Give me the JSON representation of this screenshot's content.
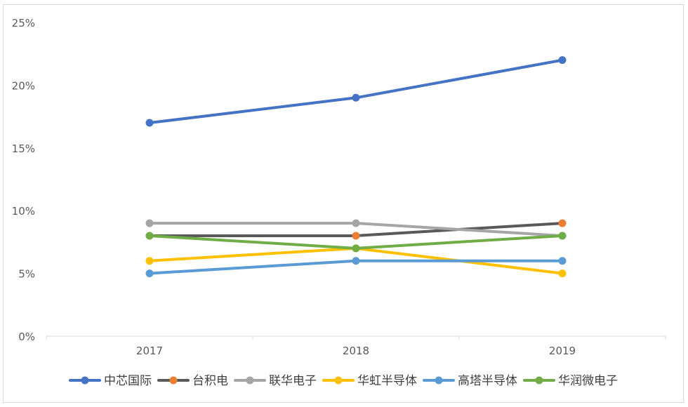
{
  "chart_data": {
    "type": "line",
    "categories": [
      "2017",
      "2018",
      "2019"
    ],
    "y_ticks": [
      "0%",
      "5%",
      "10%",
      "15%",
      "20%",
      "25%"
    ],
    "ylim": [
      0,
      25
    ],
    "grid": false,
    "legend_position": "bottom",
    "series": [
      {
        "name": "中芯国际",
        "values": [
          17,
          19,
          22
        ],
        "color": "#4472c4",
        "marker_color": "#4472c4"
      },
      {
        "name": "台积电",
        "values": [
          8,
          8,
          9
        ],
        "color": "#595959",
        "marker_color": "#ed7d31"
      },
      {
        "name": "联华电子",
        "values": [
          9,
          9,
          8
        ],
        "color": "#a5a5a5",
        "marker_color": "#a5a5a5"
      },
      {
        "name": "华虹半导体",
        "values": [
          6,
          7,
          5
        ],
        "color": "#ffc000",
        "marker_color": "#ffc000"
      },
      {
        "name": "高塔半导体",
        "values": [
          5,
          6,
          6
        ],
        "color": "#5b9bd5",
        "marker_color": "#5b9bd5"
      },
      {
        "name": "华润微电子",
        "values": [
          8,
          7,
          8
        ],
        "color": "#70ad47",
        "marker_color": "#70ad47"
      }
    ]
  }
}
